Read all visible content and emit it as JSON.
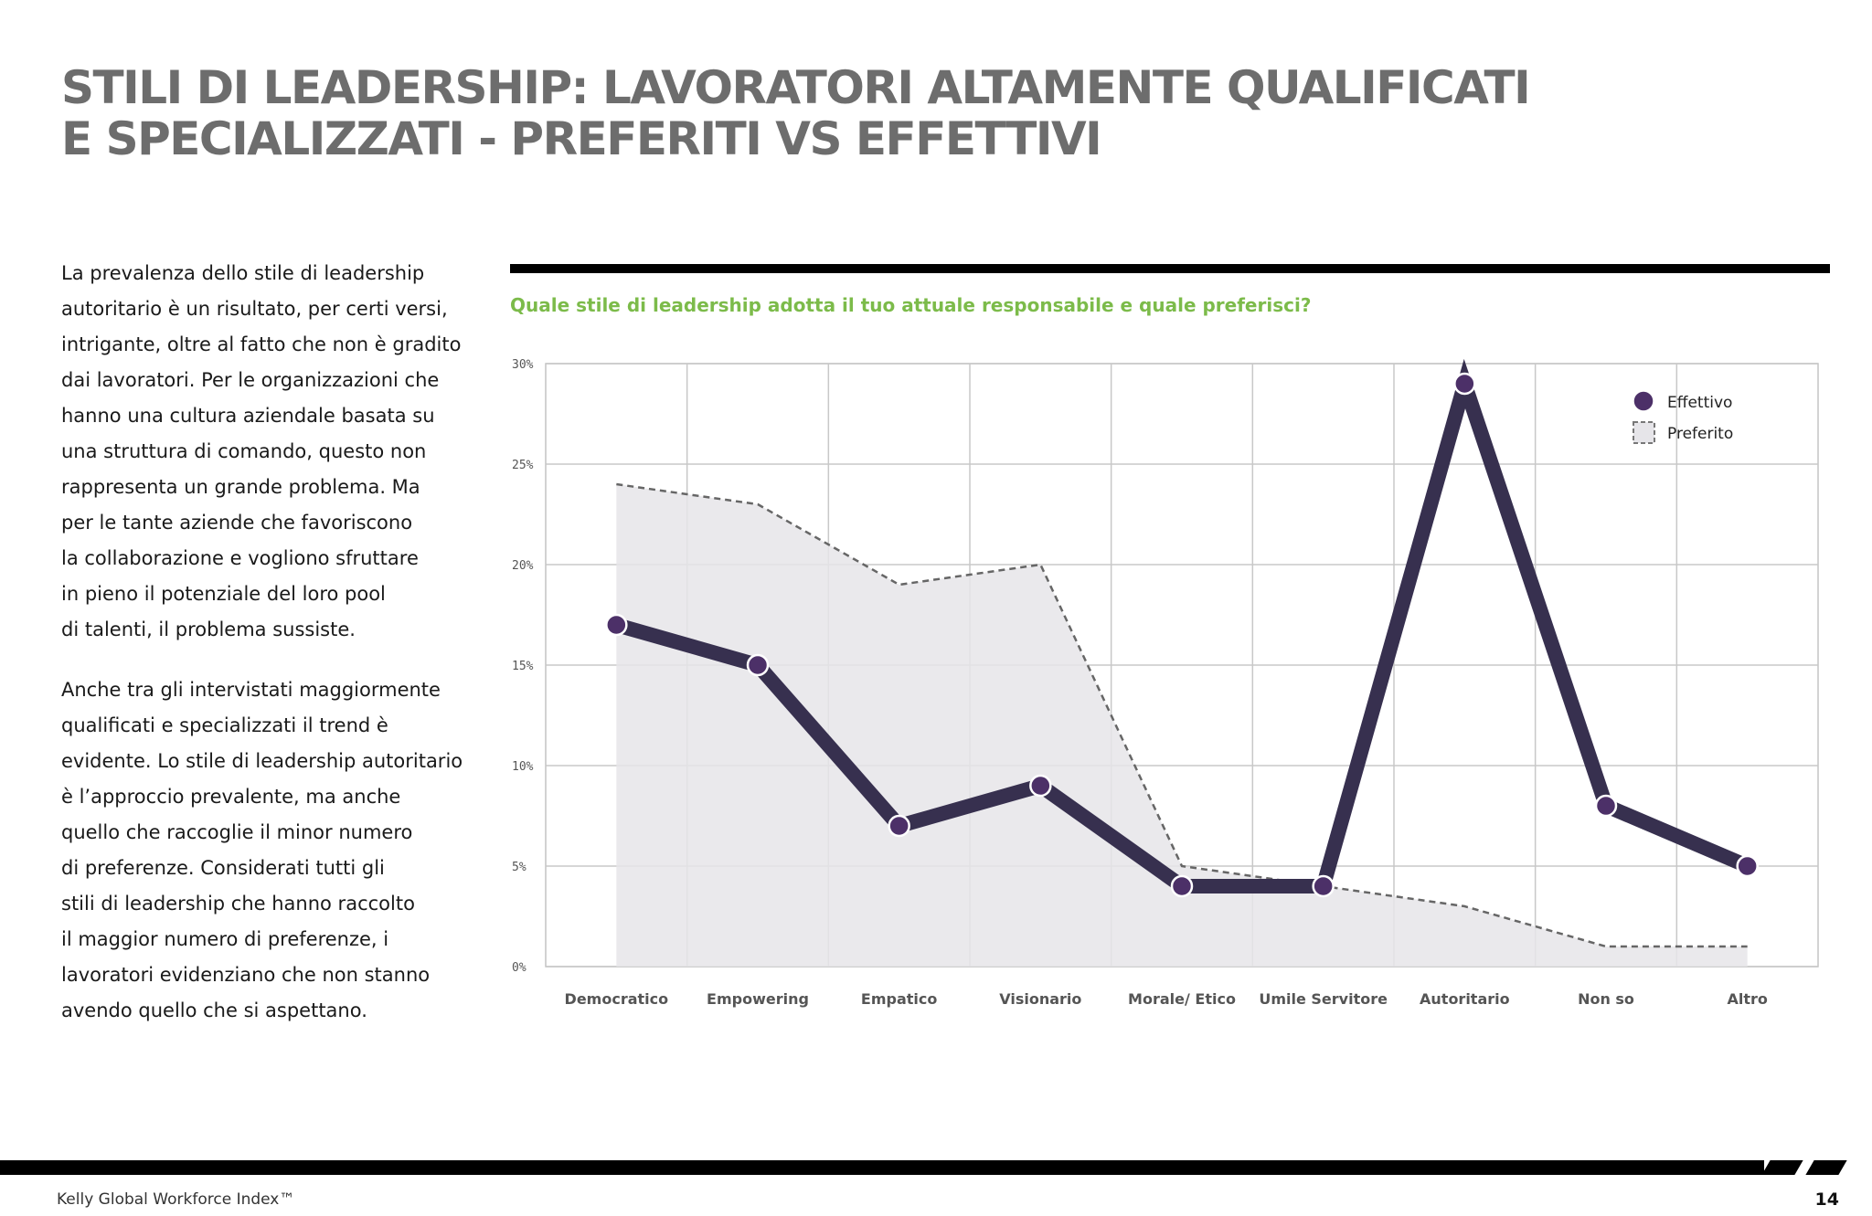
{
  "title": {
    "line1": "STILI DI LEADERSHIP: LAVORATORI ALTAMENTE QUALIFICATI",
    "line2": "E SPECIALIZZATI - PREFERITI VS EFFETTIVI"
  },
  "body": {
    "paragraph1": [
      "La prevalenza dello stile di leadership",
      "autoritario è un risultato, per certi versi,",
      "intrigante, oltre al fatto che non è gradito",
      "dai lavoratori. Per le organizzazioni che",
      "hanno una cultura aziendale basata su",
      "una struttura di comando, questo non",
      "rappresenta un grande problema. Ma",
      "per le tante aziende che favoriscono",
      "la collaborazione e vogliono sfruttare",
      "in pieno il potenziale del loro pool",
      "di talenti, il problema sussiste."
    ],
    "paragraph2": [
      "Anche tra gli intervistati maggiormente",
      "qualificati e specializzati il trend è",
      "evidente. Lo stile di leadership autoritario",
      "è l’approccio prevalente, ma anche",
      "quello che raccoglie il minor numero",
      "di preferenze. Considerati tutti gli",
      "stili di leadership che hanno raccolto",
      "il maggior numero di preferenze, i",
      "lavoratori evidenziano che non stanno",
      "avendo quello che si aspettano."
    ]
  },
  "chart_data": {
    "type": "line",
    "title": "Quale stile di leadership adotta il tuo attuale responsabile e quale preferisci?",
    "categories": [
      "Democratico",
      "Empowering",
      "Empatico",
      "Visionario",
      "Morale/ Etico",
      "Umile Servitore",
      "Autoritario",
      "Non so",
      "Altro"
    ],
    "series": [
      {
        "name": "Effettivo",
        "values": [
          17,
          15,
          7,
          9,
          4,
          4,
          29,
          8,
          5
        ],
        "color": "#37304f",
        "marker_color": "#4c3068"
      },
      {
        "name": "Preferito",
        "values": [
          24,
          23,
          19,
          20,
          5,
          4,
          3,
          1,
          1
        ],
        "color": "#666666",
        "fill": "#e6e5e9"
      }
    ],
    "ylim": [
      0,
      30
    ],
    "yticks": [
      "0%",
      "5%",
      "10%",
      "15%",
      "20%",
      "25%",
      "30%"
    ],
    "grid": true,
    "legend": "top-right"
  },
  "footer": {
    "brand": "Kelly Global Workforce Index™",
    "page": "14"
  }
}
